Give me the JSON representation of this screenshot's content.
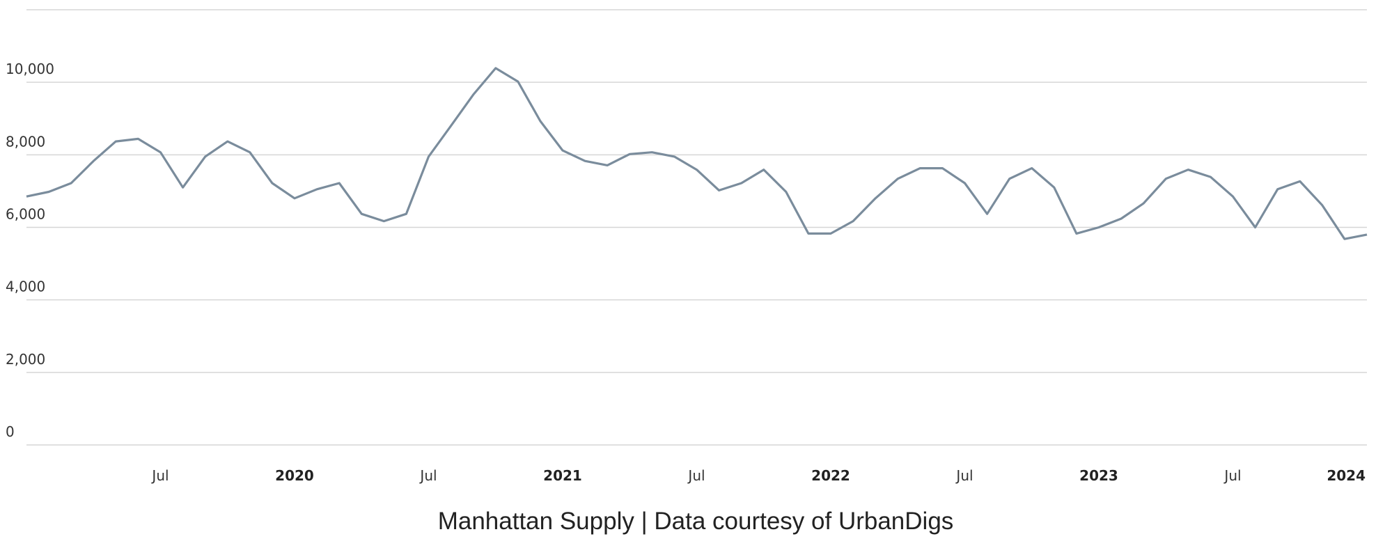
{
  "chart_data": {
    "type": "line",
    "title": "Manhattan Supply | Data courtesy of UrbanDigs",
    "x": [
      "2019-01",
      "2019-02",
      "2019-03",
      "2019-04",
      "2019-05",
      "2019-06",
      "2019-07",
      "2019-08",
      "2019-09",
      "2019-10",
      "2019-11",
      "2019-12",
      "2020-01",
      "2020-02",
      "2020-03",
      "2020-04",
      "2020-05",
      "2020-06",
      "2020-07",
      "2020-08",
      "2020-09",
      "2020-10",
      "2020-11",
      "2020-12",
      "2021-01",
      "2021-02",
      "2021-03",
      "2021-04",
      "2021-05",
      "2021-06",
      "2021-07",
      "2021-08",
      "2021-09",
      "2021-10",
      "2021-11",
      "2021-12",
      "2022-01",
      "2022-02",
      "2022-03",
      "2022-04",
      "2022-05",
      "2022-06",
      "2022-07",
      "2022-08",
      "2022-09",
      "2022-10",
      "2022-11",
      "2022-12",
      "2023-01",
      "2023-02",
      "2023-03",
      "2023-04",
      "2023-05",
      "2023-06",
      "2023-07",
      "2023-08",
      "2023-09",
      "2023-10",
      "2023-11",
      "2023-12",
      "2024-01"
    ],
    "series": [
      {
        "name": "Manhattan Supply",
        "color": "#7a8c9c",
        "values": [
          6850,
          6980,
          7220,
          7830,
          8370,
          8440,
          8070,
          7100,
          7950,
          8370,
          8070,
          7220,
          6800,
          7050,
          7220,
          6370,
          6170,
          6370,
          7950,
          8800,
          9660,
          10390,
          10020,
          8930,
          8120,
          7830,
          7710,
          8020,
          8070,
          7950,
          7590,
          7020,
          7220,
          7590,
          6980,
          5830,
          5830,
          6170,
          6800,
          7340,
          7630,
          7630,
          7220,
          6370,
          7340,
          7630,
          7100,
          5830,
          6000,
          6240,
          6660,
          7340,
          7590,
          7390,
          6850,
          6000,
          7050,
          7270,
          6610,
          5680,
          5800
        ]
      }
    ],
    "xlim": [
      "2019-01",
      "2024-01"
    ],
    "xticks": [
      {
        "value": "2019-07",
        "label": "Jul"
      },
      {
        "value": "2020-01",
        "label": "2020"
      },
      {
        "value": "2020-07",
        "label": "Jul"
      },
      {
        "value": "2021-01",
        "label": "2021"
      },
      {
        "value": "2021-07",
        "label": "Jul"
      },
      {
        "value": "2022-01",
        "label": "2022"
      },
      {
        "value": "2022-07",
        "label": "Jul"
      },
      {
        "value": "2023-01",
        "label": "2023"
      },
      {
        "value": "2023-07",
        "label": "Jul"
      },
      {
        "value": "2024-01",
        "label": "2024"
      }
    ],
    "ylim": [
      0,
      12000
    ],
    "yticks": [
      0,
      {
        "value": 2000,
        "label": "2,000"
      },
      {
        "value": 4000,
        "label": "4,000"
      },
      {
        "value": 6000,
        "label": "6,000"
      },
      {
        "value": 8000,
        "label": "8,000"
      },
      {
        "value": 10000,
        "label": "10,000"
      }
    ],
    "grid": true
  }
}
